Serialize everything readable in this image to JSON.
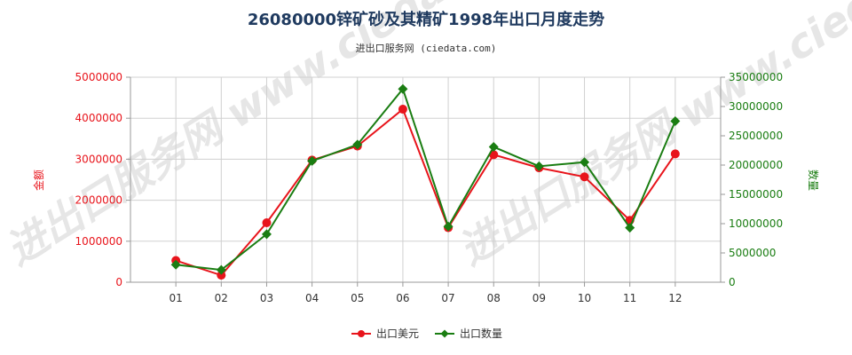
{
  "chart_data": {
    "type": "line",
    "title": "26080000锌矿砂及其精矿1998年出口月度走势",
    "subtitle": "进出口服务网 (ciedata.com)",
    "watermark": "进出口服务网 www.ciedata.com",
    "categories": [
      "01",
      "02",
      "03",
      "04",
      "05",
      "06",
      "07",
      "08",
      "09",
      "10",
      "11",
      "12"
    ],
    "series": [
      {
        "name": "出口美元",
        "axis": "left",
        "color": "#e8141b",
        "marker": "circle",
        "values": [
          530000,
          170000,
          1450000,
          2980000,
          3320000,
          4220000,
          1330000,
          3110000,
          2790000,
          2570000,
          1510000,
          3130000
        ]
      },
      {
        "name": "出口数量",
        "axis": "right",
        "color": "#1a7d12",
        "marker": "diamond",
        "values": [
          3000000,
          2100000,
          8200000,
          20700000,
          23500000,
          33000000,
          9500000,
          23100000,
          19800000,
          20500000,
          9300000,
          27500000
        ]
      }
    ],
    "y_left": {
      "label": "金额",
      "color": "#e8141b",
      "ylim": [
        0,
        5000000
      ],
      "ticks": [
        "0",
        "1000000",
        "2000000",
        "3000000",
        "4000000",
        "5000000"
      ]
    },
    "y_right": {
      "label": "数量",
      "color": "#1a7d12",
      "ylim": [
        0,
        35000000
      ],
      "ticks": [
        "0",
        "5000000",
        "10000000",
        "15000000",
        "20000000",
        "25000000",
        "30000000",
        "35000000"
      ]
    },
    "grid": true,
    "legend_position": "bottom-center"
  }
}
